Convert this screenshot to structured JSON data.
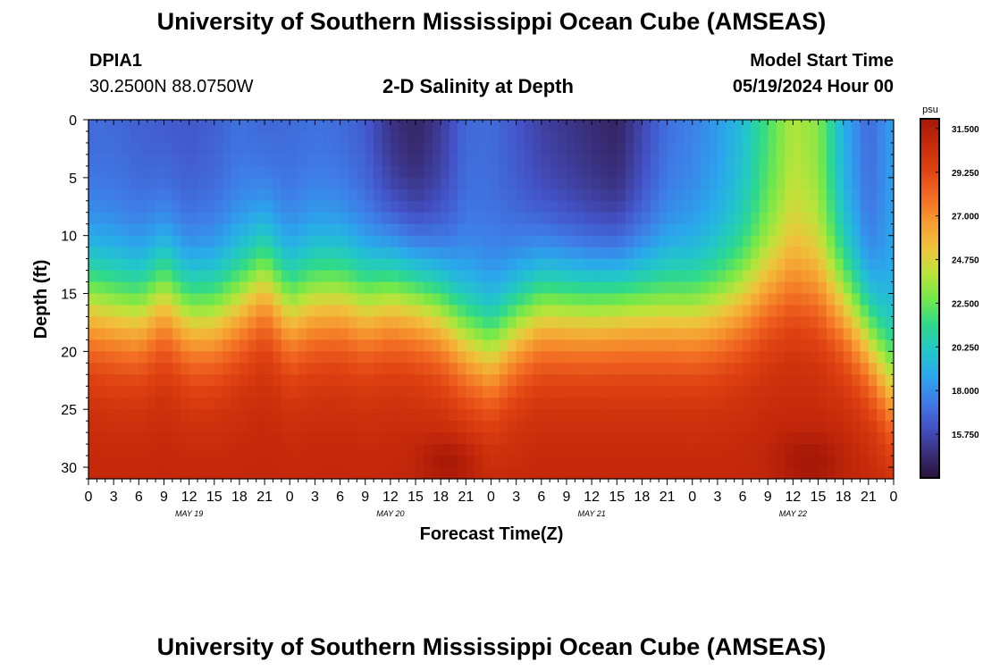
{
  "header": {
    "title": "University of Southern Mississippi Ocean Cube (AMSEAS)",
    "station_id": "DPIA1",
    "station_coords": "30.2500N  88.0750W",
    "chart_title": "2-D Salinity at Depth",
    "model_start_label": "Model Start Time",
    "model_start_value": "05/19/2024 Hour 00"
  },
  "footer": {
    "title": "University of Southern Mississippi Ocean Cube (AMSEAS)"
  },
  "colors": {
    "colormap": [
      "#2a1238",
      "#3a2f7c",
      "#4353c7",
      "#3f7de7",
      "#2aa8ec",
      "#22c7c7",
      "#30d98a",
      "#74e84a",
      "#bde33a",
      "#f0c23c",
      "#f69a30",
      "#f26a22",
      "#df4312",
      "#c62a0a",
      "#a71808"
    ],
    "colormap_min": 13.5,
    "colormap_max": 32.0
  },
  "chart_data": {
    "type": "heatmap",
    "title": "2-D Salinity at Depth",
    "xlabel": "Forecast Time(Z)",
    "ylabel": "Depth (ft)",
    "x_ticks": [
      "0",
      "3",
      "6",
      "9",
      "12",
      "15",
      "18",
      "21",
      "0",
      "3",
      "6",
      "9",
      "12",
      "15",
      "18",
      "21",
      "0",
      "3",
      "6",
      "9",
      "12",
      "15",
      "18",
      "21",
      "0",
      "3",
      "6",
      "9",
      "12",
      "15",
      "18",
      "21",
      "0"
    ],
    "x_range_hours": [
      0,
      96
    ],
    "date_labels": [
      {
        "text": "MAY 19",
        "hour": 12
      },
      {
        "text": "MAY 20",
        "hour": 36
      },
      {
        "text": "MAY 21",
        "hour": 60
      },
      {
        "text": "MAY 22",
        "hour": 84
      }
    ],
    "y_ticks": [
      0,
      5,
      10,
      15,
      20,
      25,
      30
    ],
    "y_range_ft": [
      0,
      31
    ],
    "colorbar": {
      "unit": "psu",
      "tick_labels": [
        "31.500",
        "29.250",
        "27.000",
        "24.750",
        "22.500",
        "20.250",
        "18.000",
        "15.750"
      ],
      "tick_values": [
        31.5,
        29.25,
        27.0,
        24.75,
        22.5,
        20.25,
        18.0,
        15.75
      ],
      "range": [
        13.5,
        32.0
      ]
    },
    "surface_salinity_psu": {
      "hours": [
        0,
        3,
        6,
        9,
        12,
        15,
        18,
        21,
        24,
        27,
        30,
        33,
        36,
        39,
        42,
        45,
        48,
        51,
        54,
        57,
        60,
        63,
        66,
        69,
        72,
        75,
        78,
        81,
        84,
        87,
        90,
        93,
        96
      ],
      "values": [
        16.8,
        16.8,
        16.5,
        16.3,
        16.2,
        16.5,
        17.0,
        16.6,
        16.8,
        17.0,
        16.8,
        16.3,
        14.8,
        14.2,
        15.2,
        16.8,
        16.9,
        16.2,
        15.4,
        15.0,
        14.6,
        14.2,
        15.6,
        17.0,
        17.5,
        18.3,
        19.6,
        21.8,
        23.8,
        23.0,
        19.0,
        16.8,
        18.6
      ]
    },
    "halocline_depth_ft": {
      "hours": [
        0,
        3,
        6,
        9,
        12,
        15,
        18,
        21,
        24,
        27,
        30,
        33,
        36,
        39,
        42,
        45,
        48,
        51,
        54,
        57,
        60,
        63,
        66,
        69,
        72,
        75,
        78,
        81,
        84,
        87,
        90,
        93,
        96
      ],
      "values": [
        15.5,
        16.0,
        16.3,
        14.5,
        16.5,
        16.5,
        15.2,
        13.2,
        16.0,
        15.0,
        14.8,
        15.5,
        14.5,
        14.8,
        16.0,
        18.5,
        19.8,
        17.5,
        15.8,
        15.8,
        15.8,
        15.5,
        15.8,
        16.2,
        16.5,
        16.2,
        15.5,
        14.5,
        14.0,
        14.5,
        15.8,
        18.5,
        23.0
      ]
    },
    "bottom_salinity_psu": 30.9,
    "bottom_max_salinity_psu": 31.7,
    "grid": false,
    "legend": "colorbar-right"
  }
}
